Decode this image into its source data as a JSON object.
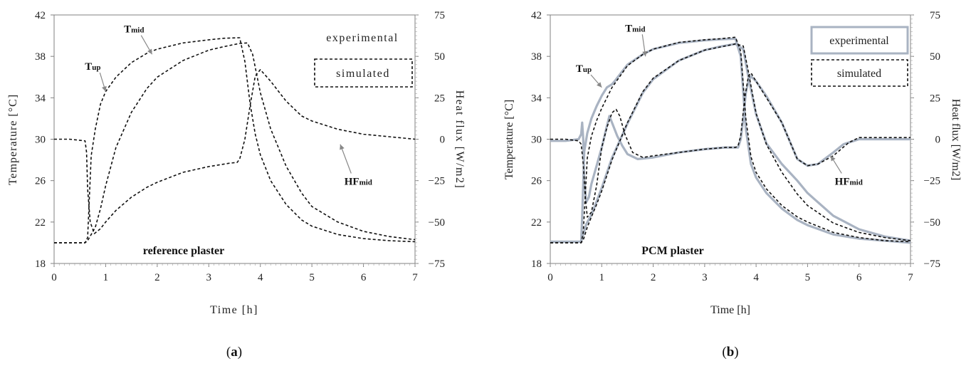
{
  "chart_data": [
    {
      "panel": "a",
      "type": "line",
      "caption_letter": "a",
      "xlabel": "Time [h]",
      "ylabel": "Temperature [°C]",
      "y2label": "Heat flux [W/m2]",
      "xlim": [
        0,
        7
      ],
      "ylim": [
        18,
        42
      ],
      "y2lim": [
        -75,
        75
      ],
      "xticks": [
        0,
        1,
        2,
        3,
        4,
        5,
        6,
        7
      ],
      "yticks": [
        18,
        22,
        26,
        30,
        34,
        38,
        42
      ],
      "y2ticks": [
        -75,
        -50,
        -25,
        0,
        25,
        50,
        75
      ],
      "grid": false,
      "legend_placement": "top-right",
      "legend": [
        {
          "label": "experimental",
          "style": "none"
        },
        {
          "label": "simulated",
          "style": "dashed"
        }
      ],
      "plot_label": "reference plaster",
      "annotations": [
        {
          "main": "T",
          "sub": "up",
          "x": 0.75,
          "y": 36.7,
          "target": [
            1.0,
            34.6
          ]
        },
        {
          "main": "T",
          "sub": "mid",
          "x": 1.55,
          "y": 40.3,
          "target": [
            1.9,
            38.2
          ]
        },
        {
          "main": "HF",
          "sub": "mid",
          "x": 5.9,
          "y": 25.6,
          "target": [
            5.55,
            29.5
          ]
        }
      ],
      "series": [
        {
          "id": "Tup_sim",
          "style": "dashed",
          "axis": "left",
          "x": [
            0,
            0.6,
            0.65,
            0.72,
            0.8,
            0.9,
            1.0,
            1.2,
            1.5,
            1.8,
            2.0,
            2.5,
            3.0,
            3.3,
            3.6,
            3.7,
            3.8,
            3.9,
            4.0,
            4.2,
            4.5,
            4.8,
            5.0,
            5.5,
            6.0,
            6.5,
            7.0
          ],
          "y": [
            20,
            20,
            20.5,
            28.4,
            31.0,
            33.4,
            34.6,
            36.0,
            37.4,
            38.3,
            38.7,
            39.3,
            39.6,
            39.75,
            39.8,
            37.5,
            33.5,
            30.5,
            28.5,
            26.0,
            23.7,
            22.2,
            21.6,
            20.8,
            20.4,
            20.2,
            20.1
          ]
        },
        {
          "id": "Tmid_sim",
          "style": "dashed",
          "axis": "left",
          "x": [
            0,
            0.6,
            0.65,
            0.72,
            0.8,
            0.9,
            1.0,
            1.2,
            1.5,
            1.8,
            2.0,
            2.5,
            3.0,
            3.3,
            3.6,
            3.75,
            3.85,
            4.0,
            4.2,
            4.5,
            4.8,
            5.0,
            5.5,
            6.0,
            6.5,
            7.0
          ],
          "y": [
            20,
            20,
            20.2,
            20.8,
            21.5,
            23.3,
            25.5,
            29.2,
            32.6,
            34.9,
            36.0,
            37.6,
            38.6,
            38.95,
            39.25,
            39.3,
            38.2,
            34.5,
            31.0,
            27.4,
            24.8,
            23.5,
            22.0,
            21.1,
            20.6,
            20.3
          ]
        },
        {
          "id": "HFmid_sim",
          "style": "dashed",
          "axis": "right",
          "x": [
            0,
            0.3,
            0.6,
            0.63,
            0.65,
            0.7,
            0.78,
            0.9,
            1.0,
            1.2,
            1.5,
            1.8,
            2.0,
            2.5,
            3.0,
            3.4,
            3.55,
            3.6,
            3.7,
            3.8,
            3.9,
            4.0,
            4.2,
            4.5,
            4.8,
            5.0,
            5.5,
            6.0,
            6.5,
            7.0
          ],
          "y": [
            0,
            0,
            -1,
            -8,
            -30,
            -50,
            -57,
            -54,
            -50,
            -43,
            -35,
            -29,
            -26,
            -20,
            -16.5,
            -14.5,
            -14,
            -12,
            0,
            20,
            38,
            42,
            35,
            23,
            14,
            11,
            6,
            3,
            1.5,
            0
          ]
        }
      ]
    },
    {
      "panel": "b",
      "type": "line",
      "caption_letter": "b",
      "xlabel": "Time [h]",
      "ylabel": "Temperature [°C]",
      "y2label": "Heat flux [W/m2]",
      "xlim": [
        0,
        7
      ],
      "ylim": [
        18,
        42
      ],
      "y2lim": [
        -75,
        75
      ],
      "xticks": [
        0,
        1,
        2,
        3,
        4,
        5,
        6,
        7
      ],
      "yticks": [
        18,
        22,
        26,
        30,
        34,
        38,
        42
      ],
      "y2ticks": [
        -75,
        -50,
        -25,
        0,
        25,
        50,
        75
      ],
      "grid": false,
      "legend_placement": "top-right",
      "legend": [
        {
          "label": "experimental",
          "style": "solid-gray"
        },
        {
          "label": "simulated",
          "style": "dashed"
        }
      ],
      "plot_label": "PCM plaster",
      "annotations": [
        {
          "main": "T",
          "sub": "up",
          "x": 0.65,
          "y": 36.5,
          "target": [
            1.0,
            35.0
          ]
        },
        {
          "main": "T",
          "sub": "mid",
          "x": 1.65,
          "y": 40.4,
          "target": [
            1.85,
            38.0
          ]
        },
        {
          "main": "HF",
          "sub": "mid",
          "x": 5.8,
          "y": 25.6,
          "target": [
            5.45,
            28.4
          ]
        }
      ],
      "series": [
        {
          "id": "Tup_exp",
          "style": "solid-gray",
          "axis": "left",
          "x": [
            0,
            0.6,
            0.62,
            0.66,
            0.72,
            0.8,
            0.9,
            1.0,
            1.1,
            1.2,
            1.25,
            1.5,
            1.8,
            2.0,
            2.5,
            3.0,
            3.3,
            3.6,
            3.7,
            3.8,
            3.9,
            4.0,
            4.2,
            4.5,
            4.8,
            5.0,
            5.5,
            6.0,
            6.5,
            7.0
          ],
          "y": [
            20.1,
            20.1,
            22.5,
            28.8,
            30.6,
            32.0,
            33.2,
            34.2,
            35.0,
            35.3,
            35.6,
            37.2,
            38.2,
            38.7,
            39.3,
            39.55,
            39.65,
            39.7,
            38.0,
            31.0,
            27.6,
            26.3,
            24.8,
            23.3,
            22.2,
            21.7,
            20.8,
            20.4,
            20.2,
            20.0
          ]
        },
        {
          "id": "Tup_sim",
          "style": "dashed",
          "axis": "left",
          "x": [
            0,
            0.6,
            0.64,
            0.72,
            0.8,
            0.9,
            1.0,
            1.2,
            1.5,
            1.8,
            2.0,
            2.5,
            3.0,
            3.3,
            3.6,
            3.7,
            3.8,
            3.9,
            4.0,
            4.2,
            4.5,
            4.8,
            5.0,
            5.5,
            6.0,
            6.5,
            7.0
          ],
          "y": [
            20,
            20,
            21.0,
            28.2,
            30.3,
            31.8,
            33.0,
            35.0,
            37.1,
            38.2,
            38.7,
            39.35,
            39.6,
            39.7,
            39.85,
            38.5,
            32.0,
            28.3,
            26.8,
            25.2,
            23.6,
            22.5,
            22.0,
            21.0,
            20.5,
            20.2,
            20.1
          ]
        },
        {
          "id": "Tmid_exp",
          "style": "solid-gray",
          "axis": "left",
          "x": [
            0,
            0.6,
            0.63,
            0.7,
            0.8,
            0.9,
            1.0,
            1.2,
            1.5,
            1.8,
            2.0,
            2.5,
            3.0,
            3.3,
            3.6,
            3.75,
            3.85,
            4.0,
            4.2,
            4.5,
            4.8,
            5.0,
            5.5,
            6.0,
            6.5,
            7.0
          ],
          "y": [
            20.1,
            20.1,
            20.6,
            21.8,
            22.7,
            24.0,
            25.3,
            28.2,
            31.5,
            34.5,
            35.8,
            37.6,
            38.6,
            38.95,
            39.2,
            38.7,
            36.0,
            32.4,
            29.6,
            27.6,
            26.0,
            24.8,
            22.6,
            21.3,
            20.6,
            20.2
          ]
        },
        {
          "id": "Tmid_sim",
          "style": "dashed",
          "axis": "left",
          "x": [
            0,
            0.6,
            0.65,
            0.72,
            0.8,
            0.9,
            1.0,
            1.2,
            1.5,
            1.8,
            2.0,
            2.5,
            3.0,
            3.3,
            3.6,
            3.75,
            3.85,
            4.0,
            4.2,
            4.5,
            4.8,
            5.0,
            5.5,
            6.0,
            6.5,
            7.0
          ],
          "y": [
            20,
            20,
            20.4,
            21.5,
            22.5,
            23.7,
            25.0,
            28.0,
            31.6,
            34.6,
            35.9,
            37.6,
            38.6,
            38.9,
            39.2,
            39.0,
            36.5,
            32.5,
            29.5,
            26.8,
            24.7,
            23.6,
            21.9,
            21.0,
            20.5,
            20.2
          ]
        },
        {
          "id": "HFmid_exp",
          "style": "solid-gray",
          "axis": "right",
          "x": [
            0,
            0.3,
            0.55,
            0.6,
            0.62,
            0.64,
            0.66,
            0.7,
            0.75,
            0.8,
            0.9,
            1.0,
            1.1,
            1.15,
            1.2,
            1.3,
            1.4,
            1.5,
            1.7,
            2.0,
            2.5,
            3.0,
            3.4,
            3.6,
            3.65,
            3.7,
            3.75,
            3.8,
            3.85,
            3.9,
            4.0,
            4.2,
            4.5,
            4.8,
            5.0,
            5.2,
            5.5,
            5.7,
            5.9,
            6.0,
            6.5,
            7.0
          ],
          "y": [
            -1,
            -1,
            0,
            3,
            10,
            0,
            -25,
            -38,
            -35,
            -27,
            -16,
            -5,
            8,
            14,
            10,
            2,
            -4,
            -9,
            -12,
            -11,
            -8,
            -6,
            -5,
            -5,
            -5,
            0,
            12,
            28,
            35,
            38,
            35,
            26,
            10,
            -12,
            -16,
            -15,
            -8,
            -3,
            -1,
            0,
            0,
            0
          ]
        },
        {
          "id": "HFmid_sim",
          "style": "dashed",
          "axis": "right",
          "x": [
            0,
            0.3,
            0.55,
            0.6,
            0.64,
            0.68,
            0.72,
            0.8,
            0.9,
            1.0,
            1.1,
            1.2,
            1.28,
            1.35,
            1.45,
            1.6,
            1.8,
            2.0,
            2.5,
            3.0,
            3.4,
            3.6,
            3.65,
            3.7,
            3.78,
            3.85,
            3.9,
            4.0,
            4.2,
            4.5,
            4.8,
            5.0,
            5.2,
            5.5,
            5.8,
            6.0,
            6.5,
            7.0
          ],
          "y": [
            0,
            0,
            -1,
            -3,
            -15,
            -35,
            -47,
            -44,
            -28,
            -5,
            7,
            16,
            18,
            14,
            3,
            -8,
            -11,
            -10,
            -8,
            -6,
            -5,
            -5,
            -4,
            2,
            25,
            38,
            40,
            35,
            25,
            10,
            -12,
            -16,
            -15,
            -10,
            -2,
            1,
            1,
            1
          ]
        }
      ]
    }
  ]
}
